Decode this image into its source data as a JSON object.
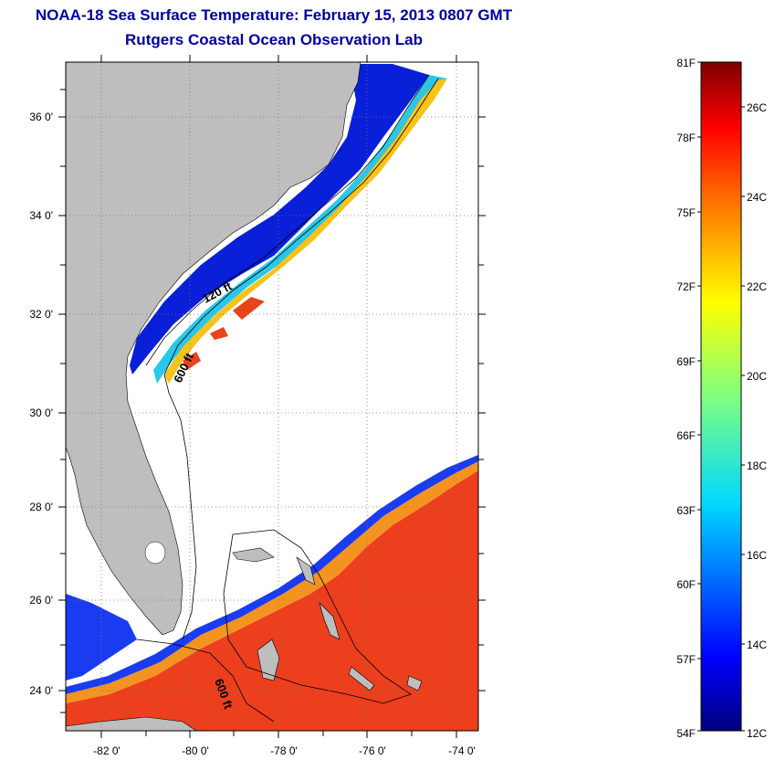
{
  "header": {
    "title": "NOAA-18 Sea Surface Temperature:  February 15, 2013 0807 GMT",
    "subtitle": "Rutgers Coastal Ocean Observation Lab"
  },
  "map": {
    "lat_labels": [
      "36 0'",
      "34 0'",
      "32 0'",
      "30 0'",
      "28 0'",
      "26 0'",
      "24 0'"
    ],
    "lon_labels": [
      "-82 0'",
      "-80 0'",
      "-78 0'",
      "-76 0'",
      "-74 0'"
    ],
    "contour_labels": [
      "120 ft",
      "600 ft",
      "600 ft"
    ],
    "land_color": "#bebebe",
    "ocean_nodata_color": "#ffffff"
  },
  "colorbar": {
    "fahrenheit_labels": [
      "81F",
      "78F",
      "75F",
      "72F",
      "69F",
      "66F",
      "63F",
      "60F",
      "57F",
      "54F"
    ],
    "celsius_labels": [
      "26C",
      "24C",
      "22C",
      "20C",
      "18C",
      "16C",
      "14C",
      "12C"
    ],
    "range_f": [
      54,
      81
    ],
    "range_c": [
      12,
      27
    ]
  }
}
